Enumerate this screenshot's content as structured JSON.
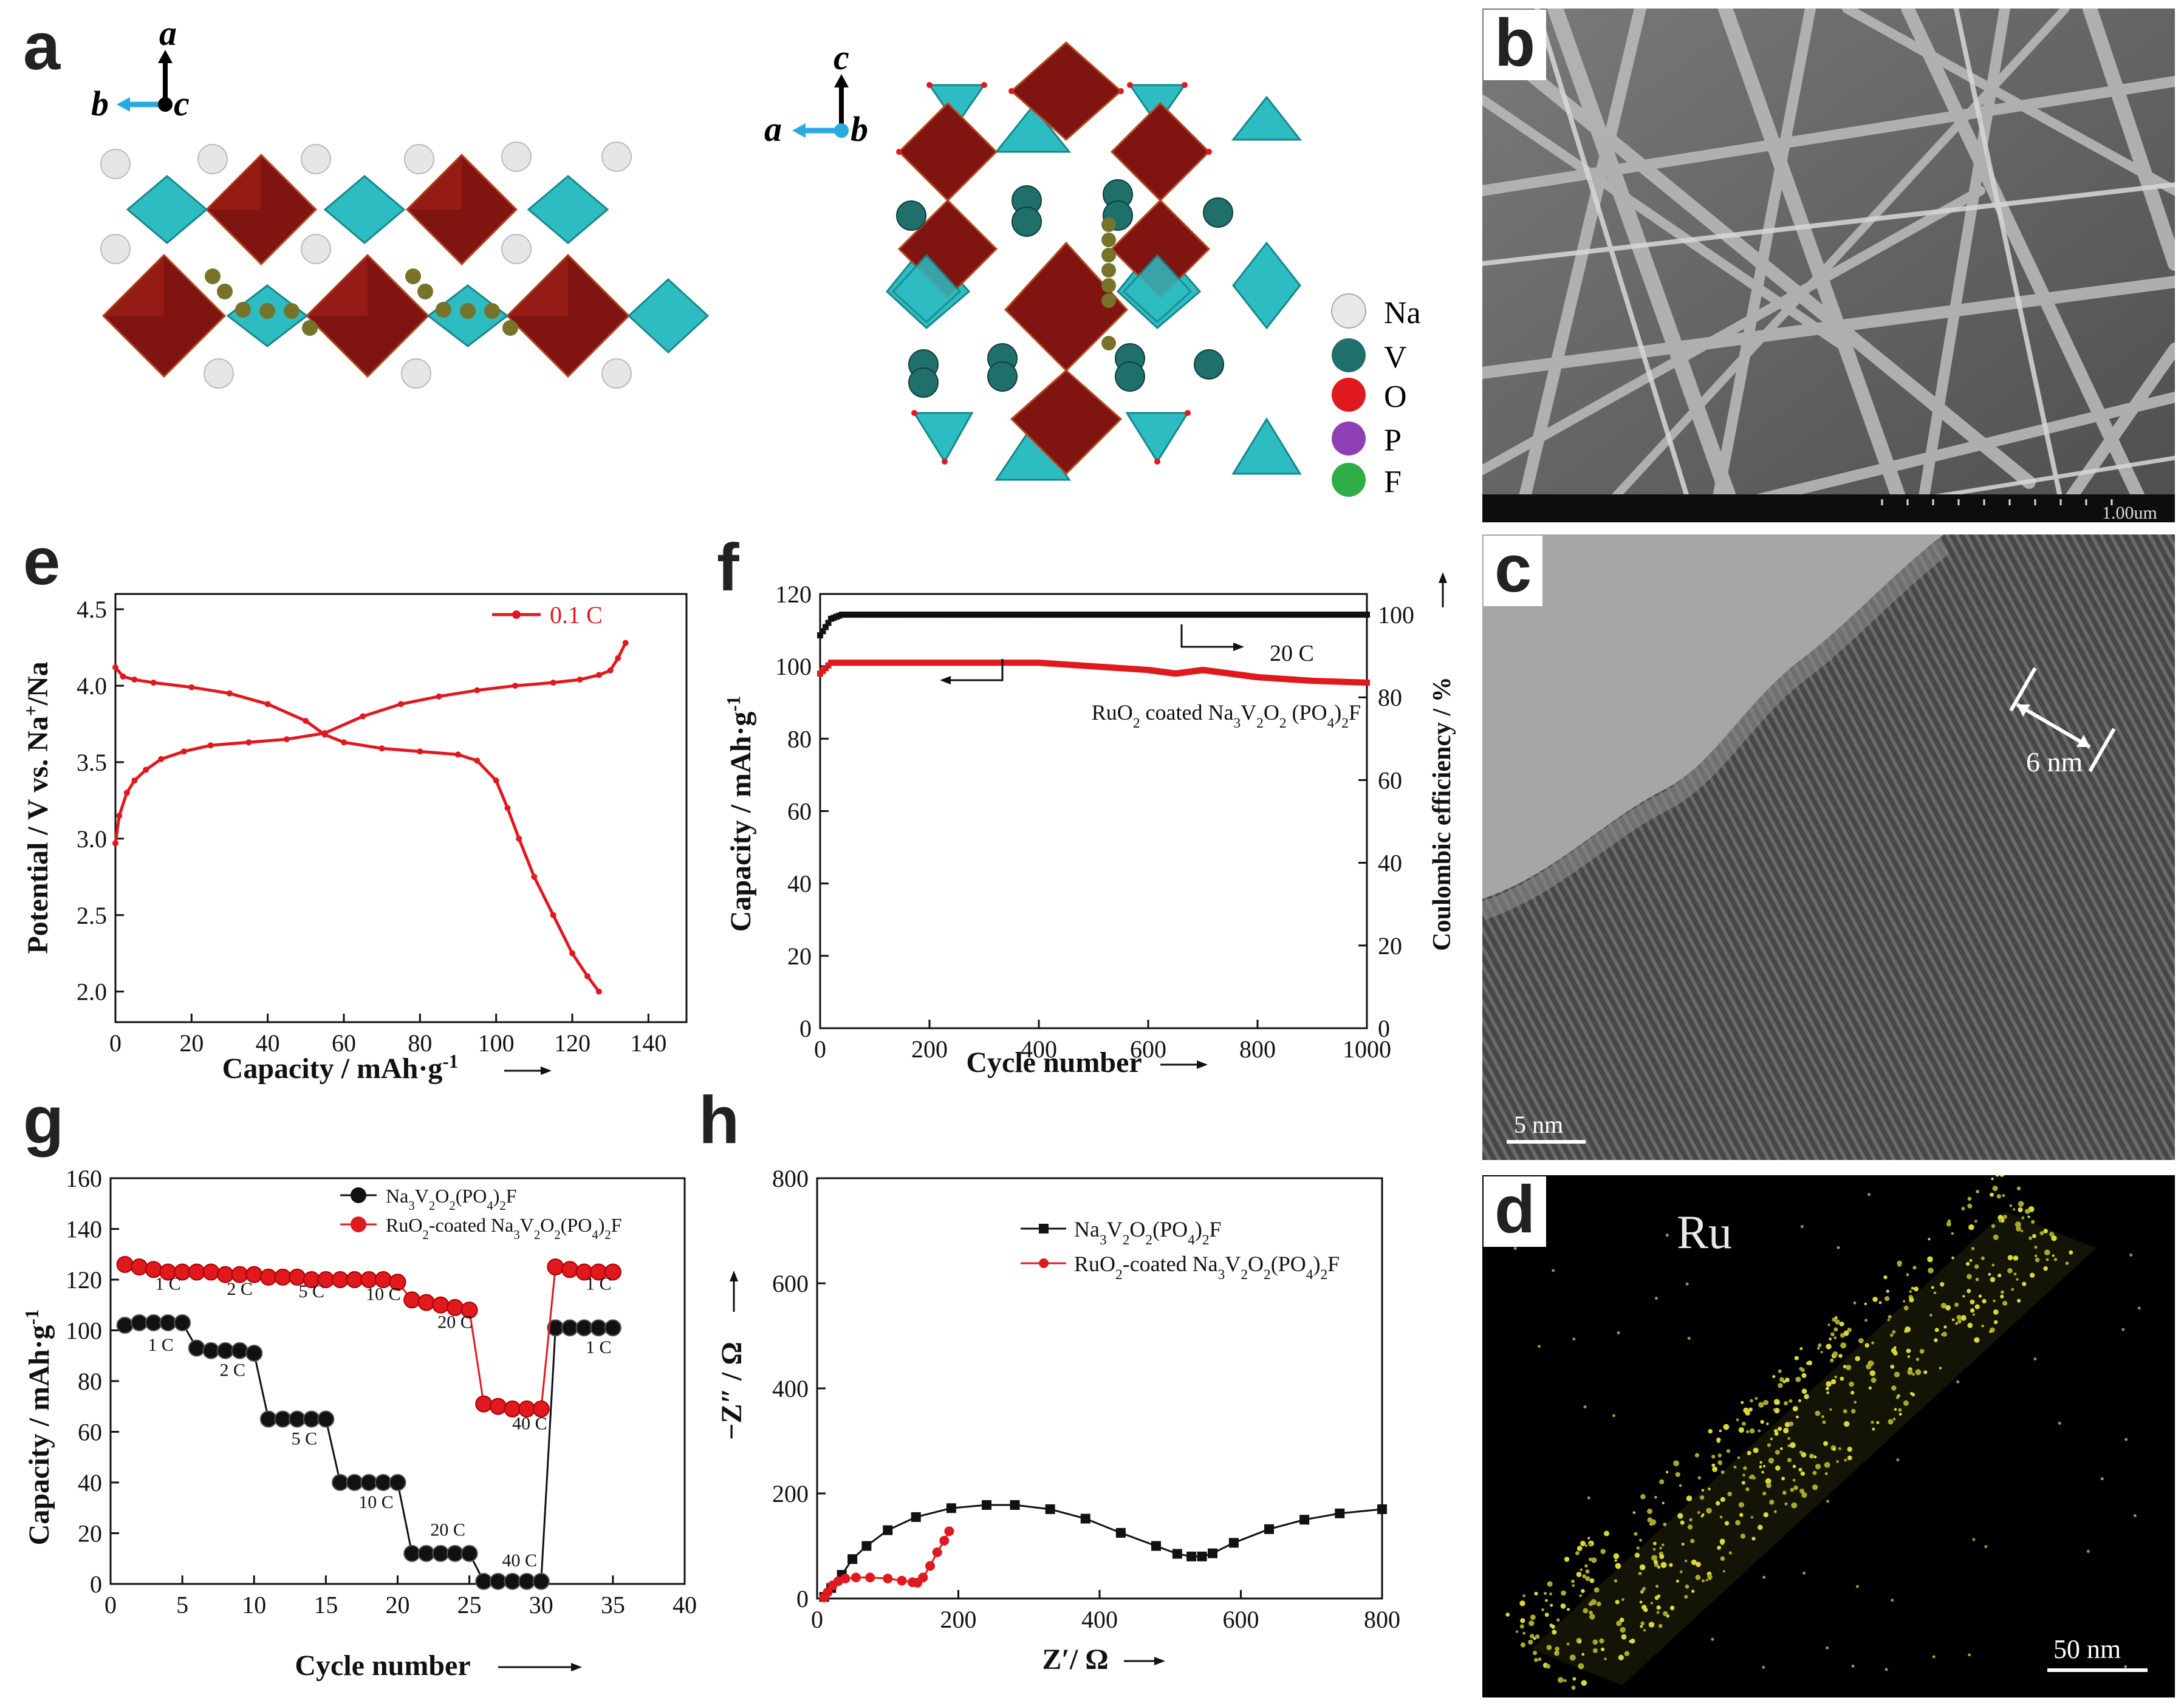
{
  "panel_letters": {
    "a": "a",
    "b": "b",
    "c": "c",
    "d": "d",
    "e": "e",
    "f": "f",
    "g": "g",
    "h": "h"
  },
  "panel_a": {
    "left_axes": {
      "up": "a",
      "left": "b",
      "center": "c"
    },
    "right_axes": {
      "up": "c",
      "left": "a",
      "center": "b"
    },
    "legend": [
      {
        "label": "Na",
        "color": "#e8e8e8"
      },
      {
        "label": "V",
        "color": "#1f6f6a"
      },
      {
        "label": "O",
        "color": "#e0191e"
      },
      {
        "label": "P",
        "color": "#8e3fb3"
      },
      {
        "label": "F",
        "color": "#2fae48"
      }
    ],
    "colors": {
      "octahedron": "#8c1a14",
      "tetrahedron": "#33c3c8"
    }
  },
  "panel_b": {
    "scale_label": "1.00um"
  },
  "panel_c": {
    "annotation": "6 nm",
    "scale_label": "5 nm"
  },
  "panel_d": {
    "element": "Ru",
    "scale_label": "50 nm"
  },
  "chart_data": [
    {
      "panel": "e",
      "type": "line",
      "xlabel": "Capacity / mAh·g",
      "xlabel_sup": "-1",
      "ylabel_pre": "Potential / V vs. Na",
      "ylabel_sup": "+",
      "ylabel_post": "/Na",
      "xlim": [
        0,
        150
      ],
      "ylim": [
        1.8,
        4.6
      ],
      "xticks": [
        0,
        20,
        40,
        60,
        80,
        100,
        120,
        140
      ],
      "yticks": [
        2.0,
        2.5,
        3.0,
        3.5,
        4.0,
        4.5
      ],
      "ytick_labels": [
        "2.0",
        "2.5",
        "3.0",
        "3.5",
        "4.0",
        "4.5"
      ],
      "legend": "0.1 C",
      "color": "#e0191e",
      "series": [
        {
          "name": "charge",
          "x": [
            0,
            1,
            3,
            5,
            8,
            12,
            18,
            25,
            35,
            45,
            55,
            65,
            75,
            85,
            95,
            105,
            115,
            122,
            127,
            130,
            132,
            134
          ],
          "y": [
            2.97,
            3.15,
            3.3,
            3.38,
            3.45,
            3.52,
            3.57,
            3.61,
            3.63,
            3.65,
            3.69,
            3.8,
            3.88,
            3.93,
            3.97,
            4.0,
            4.02,
            4.04,
            4.07,
            4.1,
            4.18,
            4.28
          ]
        },
        {
          "name": "discharge",
          "x": [
            0,
            2,
            5,
            10,
            20,
            30,
            40,
            50,
            55,
            60,
            70,
            80,
            90,
            95,
            100,
            103,
            106,
            110,
            115,
            120,
            124,
            127
          ],
          "y": [
            4.12,
            4.06,
            4.04,
            4.02,
            3.99,
            3.95,
            3.88,
            3.77,
            3.68,
            3.63,
            3.59,
            3.57,
            3.55,
            3.51,
            3.38,
            3.2,
            3.0,
            2.75,
            2.5,
            2.25,
            2.1,
            2.0
          ]
        }
      ]
    },
    {
      "panel": "f",
      "type": "scatter",
      "xlabel": "Cycle number",
      "ylabel_pre": "Capacity / mAh·g",
      "ylabel_sup": "-1",
      "y2label": "Coulombic efficiency / %",
      "xlim": [
        0,
        1000
      ],
      "ylim": [
        0,
        120
      ],
      "y2lim": [
        0,
        105
      ],
      "xticks": [
        0,
        200,
        400,
        600,
        800,
        1000
      ],
      "yticks": [
        0,
        20,
        40,
        60,
        80,
        100,
        120
      ],
      "y2ticks": [
        0,
        20,
        40,
        60,
        80,
        100
      ],
      "rate_label": "20 C",
      "sample_label_pre": "RuO",
      "sample_label_mid": " coated Na",
      "sample_label_post": "F",
      "capacity": {
        "x": [
          0,
          20,
          50,
          100,
          200,
          300,
          400,
          500,
          600,
          650,
          700,
          800,
          900,
          1000
        ],
        "y": [
          98,
          101,
          101,
          101,
          101,
          101,
          101,
          100,
          99,
          98,
          99,
          97,
          96,
          95.5
        ],
        "color": "#e0191e"
      },
      "efficiency": {
        "x": [
          0,
          10,
          20,
          40,
          100,
          300,
          500,
          700,
          1000
        ],
        "y": [
          95,
          97,
          99,
          100,
          100,
          100,
          100,
          100,
          100
        ],
        "color": "#111111"
      }
    },
    {
      "panel": "g",
      "type": "scatter",
      "xlabel": "Cycle number",
      "ylabel_pre": "Capacity / mAh·g",
      "ylabel_sup": "-1",
      "xlim": [
        0,
        40
      ],
      "ylim": [
        0,
        160
      ],
      "xticks": [
        0,
        5,
        10,
        15,
        20,
        25,
        30,
        35,
        40
      ],
      "yticks": [
        0,
        20,
        40,
        60,
        80,
        100,
        120,
        140,
        160
      ],
      "legend_black": "Na",
      "legend_red_pre": "RuO",
      "legend_red_mid": "-coated Na",
      "series": [
        {
          "name": "Na3V2O2(PO4)2F",
          "color": "#111111",
          "x": [
            1,
            2,
            3,
            4,
            5,
            6,
            7,
            8,
            9,
            10,
            11,
            12,
            13,
            14,
            15,
            16,
            17,
            18,
            19,
            20,
            21,
            22,
            23,
            24,
            25,
            26,
            27,
            28,
            29,
            30,
            31,
            32,
            33,
            34,
            35
          ],
          "y": [
            102,
            103,
            103,
            103,
            103,
            93,
            92,
            92,
            92,
            91,
            65,
            65,
            65,
            65,
            65,
            40,
            40,
            40,
            40,
            40,
            12,
            12,
            12,
            12,
            12,
            1,
            1,
            1,
            1,
            1,
            101,
            101,
            101,
            101,
            101
          ]
        },
        {
          "name": "RuO2-coated Na3V2O2(PO4)2F",
          "color": "#e0191e",
          "x": [
            1,
            2,
            3,
            4,
            5,
            6,
            7,
            8,
            9,
            10,
            11,
            12,
            13,
            14,
            15,
            16,
            17,
            18,
            19,
            20,
            21,
            22,
            23,
            24,
            25,
            26,
            27,
            28,
            29,
            30,
            31,
            32,
            33,
            34,
            35
          ],
          "y": [
            126,
            125,
            124,
            123,
            123,
            123,
            123,
            122,
            122,
            122,
            121,
            121,
            121,
            120,
            120,
            120,
            120,
            120,
            120,
            119,
            112,
            111,
            110,
            109,
            108,
            71,
            70,
            69,
            69,
            69,
            125,
            124,
            123,
            123,
            123
          ]
        }
      ],
      "labels_red": [
        {
          "text": "1 C",
          "x": 4,
          "y": 116
        },
        {
          "text": "2 C",
          "x": 9,
          "y": 114
        },
        {
          "text": "5 C",
          "x": 14,
          "y": 113
        },
        {
          "text": "10 C",
          "x": 19,
          "y": 112
        },
        {
          "text": "20 C",
          "x": 24,
          "y": 101
        },
        {
          "text": "40 C",
          "x": 29.2,
          "y": 61
        },
        {
          "text": "1 C",
          "x": 34,
          "y": 116
        }
      ],
      "labels_black": [
        {
          "text": "1 C",
          "x": 3.5,
          "y": 92
        },
        {
          "text": "2 C",
          "x": 8.5,
          "y": 82
        },
        {
          "text": "5 C",
          "x": 13.5,
          "y": 55
        },
        {
          "text": "10 C",
          "x": 18.5,
          "y": 30
        },
        {
          "text": "20 C",
          "x": 23.5,
          "y": 19
        },
        {
          "text": "40 C",
          "x": 28.5,
          "y": 7
        },
        {
          "text": "1 C",
          "x": 34,
          "y": 91
        }
      ]
    },
    {
      "panel": "h",
      "type": "line",
      "xlabel": "Z′/ Ω",
      "ylabel": "−Z″ / Ω",
      "xlim": [
        0,
        800
      ],
      "ylim": [
        0,
        800
      ],
      "xticks": [
        0,
        200,
        400,
        600,
        800
      ],
      "yticks": [
        0,
        200,
        400,
        600,
        800
      ],
      "legend_black": "Na",
      "legend_red_pre": "RuO",
      "legend_red_mid": "-coated Na",
      "series": [
        {
          "name": "Na3V2O2(PO4)2F",
          "color": "#111111",
          "x": [
            10,
            20,
            35,
            50,
            70,
            100,
            140,
            190,
            240,
            280,
            330,
            380,
            430,
            480,
            510,
            530,
            545,
            560,
            590,
            640,
            690,
            740,
            800
          ],
          "y": [
            3,
            20,
            45,
            75,
            100,
            130,
            155,
            172,
            178,
            178,
            170,
            152,
            125,
            100,
            85,
            80,
            80,
            86,
            106,
            132,
            150,
            162,
            170
          ]
        },
        {
          "name": "RuO2-coated Na3V2O2(PO4)2F",
          "color": "#e0191e",
          "x": [
            10,
            15,
            22,
            30,
            40,
            55,
            75,
            100,
            120,
            135,
            142,
            150,
            160,
            170,
            180,
            187
          ],
          "y": [
            2,
            12,
            25,
            33,
            38,
            40,
            40,
            38,
            34,
            31,
            30,
            40,
            62,
            88,
            110,
            128
          ]
        }
      ]
    }
  ]
}
